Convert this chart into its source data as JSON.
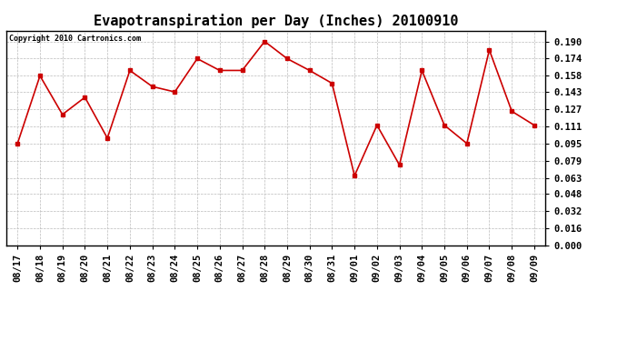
{
  "title": "Evapotranspiration per Day (Inches) 20100910",
  "copyright_text": "Copyright 2010 Cartronics.com",
  "x_labels": [
    "08/17",
    "08/18",
    "08/19",
    "08/20",
    "08/21",
    "08/22",
    "08/23",
    "08/24",
    "08/25",
    "08/26",
    "08/27",
    "08/28",
    "08/29",
    "08/30",
    "08/31",
    "09/01",
    "09/02",
    "09/03",
    "09/04",
    "09/05",
    "09/06",
    "09/07",
    "09/08",
    "09/09"
  ],
  "y_values": [
    0.095,
    0.158,
    0.122,
    0.138,
    0.1,
    0.163,
    0.148,
    0.143,
    0.174,
    0.163,
    0.163,
    0.19,
    0.174,
    0.163,
    0.151,
    0.065,
    0.112,
    0.075,
    0.163,
    0.112,
    0.095,
    0.182,
    0.125,
    0.112
  ],
  "line_color": "#cc0000",
  "marker": "s",
  "marker_size": 3,
  "background_color": "#ffffff",
  "plot_bg_color": "#ffffff",
  "grid_color": "#bbbbbb",
  "ylim_min": 0.0,
  "ylim_max": 0.2,
  "yticks": [
    0.0,
    0.016,
    0.032,
    0.048,
    0.063,
    0.079,
    0.095,
    0.111,
    0.127,
    0.143,
    0.158,
    0.174,
    0.19
  ],
  "title_fontsize": 11,
  "copyright_fontsize": 6,
  "tick_fontsize": 7.5,
  "border_color": "#000000"
}
